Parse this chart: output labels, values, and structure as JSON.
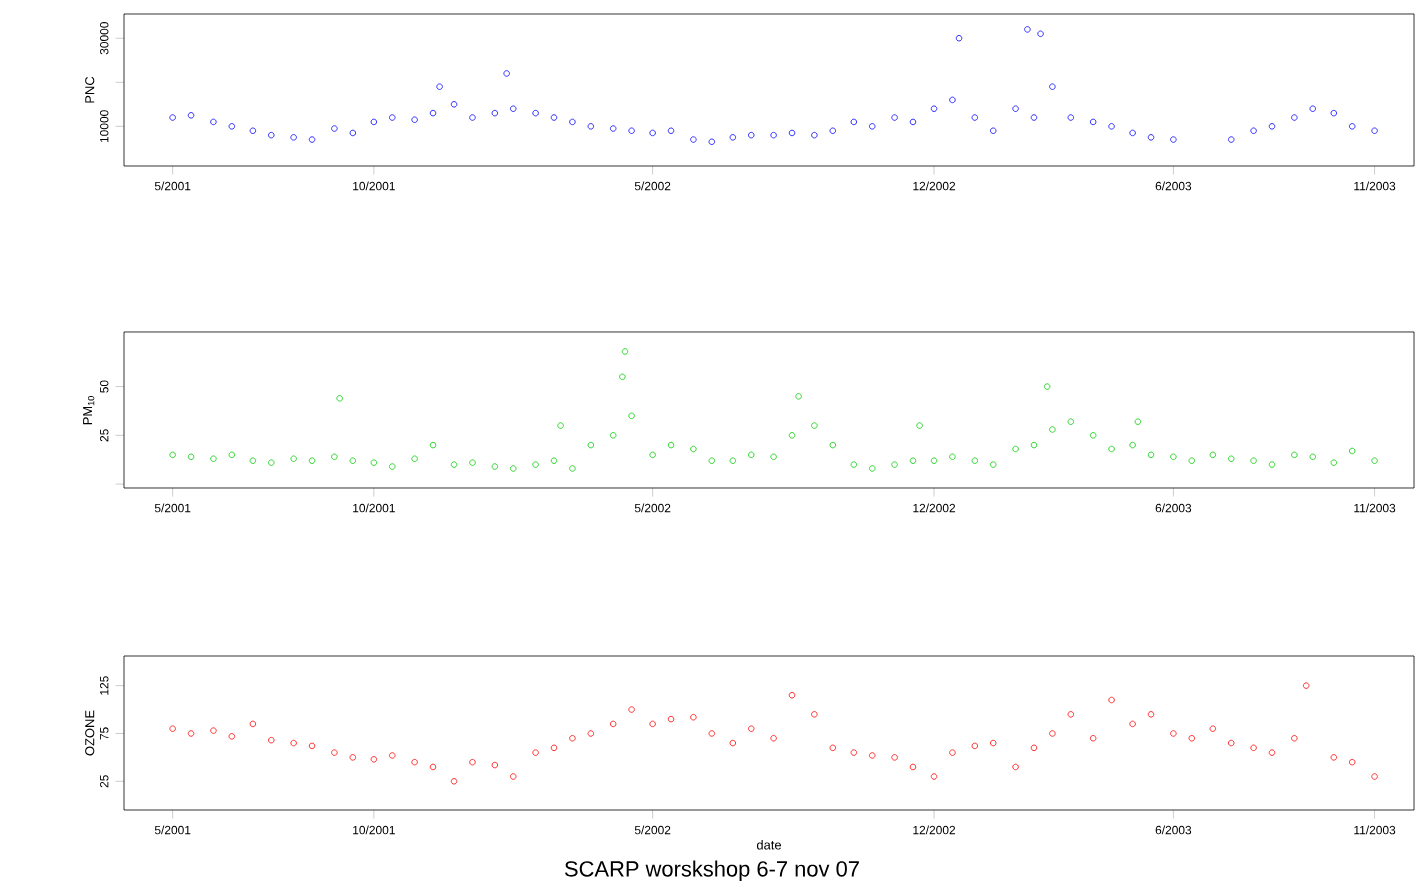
{
  "chart_data": [
    {
      "type": "scatter",
      "ylabel": "PNC",
      "color": "#0000ff",
      "marker": "circle",
      "x": [
        "2001-05-01",
        "2001-05-15",
        "2001-06-01",
        "2001-06-15",
        "2001-07-01",
        "2001-07-15",
        "2001-08-01",
        "2001-08-15",
        "2001-09-01",
        "2001-09-15",
        "2001-10-01",
        "2001-10-15",
        "2001-11-01",
        "2001-11-15",
        "2001-11-20",
        "2001-12-01",
        "2001-12-15",
        "2002-01-01",
        "2002-01-10",
        "2002-01-15",
        "2002-02-01",
        "2002-02-15",
        "2002-03-01",
        "2002-03-15",
        "2002-04-01",
        "2002-04-15",
        "2002-05-01",
        "2002-05-15",
        "2002-06-01",
        "2002-06-15",
        "2002-07-01",
        "2002-07-15",
        "2002-08-01",
        "2002-08-15",
        "2002-09-01",
        "2002-09-15",
        "2002-10-01",
        "2002-10-15",
        "2002-11-01",
        "2002-11-15",
        "2002-12-01",
        "2002-12-15",
        "2002-12-20",
        "2003-01-01",
        "2003-01-15",
        "2003-02-01",
        "2003-02-10",
        "2003-02-15",
        "2003-02-20",
        "2003-03-01",
        "2003-03-15",
        "2003-04-01",
        "2003-04-15",
        "2003-05-01",
        "2003-05-15",
        "2003-06-01",
        "2003-07-15",
        "2003-08-01",
        "2003-08-15",
        "2003-09-01",
        "2003-09-15",
        "2003-10-01",
        "2003-10-15",
        "2003-11-01"
      ],
      "values": [
        12000,
        12500,
        11000,
        10000,
        9000,
        8000,
        7500,
        7000,
        9500,
        8500,
        11000,
        12000,
        11500,
        13000,
        19000,
        15000,
        12000,
        13000,
        22000,
        14000,
        13000,
        12000,
        11000,
        10000,
        9500,
        9000,
        8500,
        9000,
        7000,
        6500,
        7500,
        8000,
        8000,
        8500,
        8000,
        9000,
        11000,
        10000,
        12000,
        11000,
        14000,
        16000,
        30000,
        12000,
        9000,
        14000,
        32000,
        12000,
        31000,
        19000,
        12000,
        11000,
        10000,
        8500,
        7500,
        7000,
        7000,
        9000,
        10000,
        12000,
        14000,
        13000,
        10000,
        9000
      ],
      "xlim": [
        "2001-03-25",
        "2003-12-01"
      ],
      "ylim": [
        1000,
        35500
      ],
      "xticks": [
        {
          "value": "2001-05-01",
          "label": "5/2001"
        },
        {
          "value": "2001-10-01",
          "label": "10/2001"
        },
        {
          "value": "2002-05-01",
          "label": "5/2002"
        },
        {
          "value": "2002-12-01",
          "label": "12/2002"
        },
        {
          "value": "2003-06-01",
          "label": "6/2003"
        },
        {
          "value": "2003-11-01",
          "label": "11/2003"
        }
      ],
      "yticks": [
        10000,
        {
          "value": 20000,
          "label": null
        },
        30000
      ]
    },
    {
      "type": "scatter",
      "ylabel": "PM$_{10}$",
      "color": "#00cc00",
      "marker": "circle",
      "x": [
        "2001-05-01",
        "2001-05-15",
        "2001-06-01",
        "2001-06-15",
        "2001-07-01",
        "2001-07-15",
        "2001-08-01",
        "2001-08-15",
        "2001-09-01",
        "2001-09-05",
        "2001-09-15",
        "2001-10-01",
        "2001-10-15",
        "2001-11-01",
        "2001-11-15",
        "2001-12-01",
        "2001-12-15",
        "2002-01-01",
        "2002-01-15",
        "2002-02-01",
        "2002-02-15",
        "2002-02-20",
        "2002-03-01",
        "2002-03-15",
        "2002-04-01",
        "2002-04-08",
        "2002-04-10",
        "2002-04-15",
        "2002-05-01",
        "2002-05-15",
        "2002-06-01",
        "2002-06-15",
        "2002-07-01",
        "2002-07-15",
        "2002-08-01",
        "2002-08-15",
        "2002-08-20",
        "2002-09-01",
        "2002-09-15",
        "2002-10-01",
        "2002-10-15",
        "2002-11-01",
        "2002-11-15",
        "2002-11-20",
        "2002-12-01",
        "2002-12-15",
        "2003-01-01",
        "2003-01-15",
        "2003-02-01",
        "2003-02-15",
        "2003-02-25",
        "2003-03-01",
        "2003-03-15",
        "2003-04-01",
        "2003-04-15",
        "2003-05-01",
        "2003-05-05",
        "2003-05-15",
        "2003-06-01",
        "2003-06-15",
        "2003-07-01",
        "2003-07-15",
        "2003-08-01",
        "2003-08-15",
        "2003-09-01",
        "2003-09-15",
        "2003-10-01",
        "2003-10-15",
        "2003-11-01"
      ],
      "values": [
        15,
        14,
        13,
        15,
        12,
        11,
        13,
        12,
        14,
        44,
        12,
        11,
        9,
        13,
        20,
        10,
        11,
        9,
        8,
        10,
        12,
        30,
        8,
        20,
        25,
        55,
        68,
        35,
        15,
        20,
        18,
        12,
        12,
        15,
        14,
        25,
        45,
        30,
        20,
        10,
        8,
        10,
        12,
        30,
        12,
        14,
        12,
        10,
        18,
        20,
        50,
        28,
        32,
        25,
        18,
        20,
        32,
        15,
        14,
        12,
        15,
        13,
        12,
        10,
        15,
        14,
        11,
        17,
        12
      ],
      "xlim": [
        "2001-03-25",
        "2003-12-01"
      ],
      "ylim": [
        -2,
        78
      ],
      "xticks": [
        {
          "value": "2001-05-01",
          "label": "5/2001"
        },
        {
          "value": "2001-10-01",
          "label": "10/2001"
        },
        {
          "value": "2002-05-01",
          "label": "5/2002"
        },
        {
          "value": "2002-12-01",
          "label": "12/2002"
        },
        {
          "value": "2003-06-01",
          "label": "6/2003"
        },
        {
          "value": "2003-11-01",
          "label": "11/2003"
        }
      ],
      "yticks": [
        {
          "value": 0,
          "label": null
        },
        25,
        50
      ]
    },
    {
      "type": "scatter",
      "ylabel": "OZONE",
      "xlabel": "date",
      "color": "#ff0000",
      "marker": "circle",
      "x": [
        "2001-05-01",
        "2001-05-15",
        "2001-06-01",
        "2001-06-15",
        "2001-07-01",
        "2001-07-15",
        "2001-08-01",
        "2001-08-15",
        "2001-09-01",
        "2001-09-15",
        "2001-10-01",
        "2001-10-15",
        "2001-11-01",
        "2001-11-15",
        "2001-12-01",
        "2001-12-15",
        "2002-01-01",
        "2002-01-15",
        "2002-02-01",
        "2002-02-15",
        "2002-03-01",
        "2002-03-15",
        "2002-04-01",
        "2002-04-15",
        "2002-05-01",
        "2002-05-15",
        "2002-06-01",
        "2002-06-15",
        "2002-07-01",
        "2002-07-15",
        "2002-08-01",
        "2002-08-15",
        "2002-09-01",
        "2002-09-15",
        "2002-10-01",
        "2002-10-15",
        "2002-11-01",
        "2002-11-15",
        "2002-12-01",
        "2002-12-15",
        "2003-01-01",
        "2003-01-15",
        "2003-02-01",
        "2003-02-15",
        "2003-03-01",
        "2003-03-15",
        "2003-04-01",
        "2003-04-15",
        "2003-05-01",
        "2003-05-15",
        "2003-06-01",
        "2003-06-15",
        "2003-07-01",
        "2003-07-15",
        "2003-08-01",
        "2003-08-15",
        "2003-09-01",
        "2003-09-10",
        "2003-10-01",
        "2003-10-15",
        "2003-11-01"
      ],
      "values": [
        80,
        75,
        78,
        72,
        85,
        68,
        65,
        62,
        55,
        50,
        48,
        52,
        45,
        40,
        25,
        45,
        42,
        30,
        55,
        60,
        70,
        75,
        85,
        100,
        85,
        90,
        92,
        75,
        65,
        80,
        70,
        115,
        95,
        60,
        55,
        52,
        50,
        40,
        30,
        55,
        62,
        65,
        40,
        60,
        75,
        95,
        70,
        110,
        85,
        95,
        75,
        70,
        80,
        65,
        60,
        55,
        70,
        125,
        50,
        45,
        30
      ],
      "xlim": [
        "2001-03-25",
        "2003-12-01"
      ],
      "ylim": [
        -5,
        156
      ],
      "xticks": [
        {
          "value": "2001-05-01",
          "label": "5/2001"
        },
        {
          "value": "2001-10-01",
          "label": "10/2001"
        },
        {
          "value": "2002-05-01",
          "label": "5/2002"
        },
        {
          "value": "2002-12-01",
          "label": "12/2002"
        },
        {
          "value": "2003-06-01",
          "label": "6/2003"
        },
        {
          "value": "2003-11-01",
          "label": "11/2003"
        }
      ],
      "yticks": [
        25,
        75,
        125
      ],
      "annotations": [
        "SCARP worskshop 6-7 nov 07"
      ]
    }
  ]
}
